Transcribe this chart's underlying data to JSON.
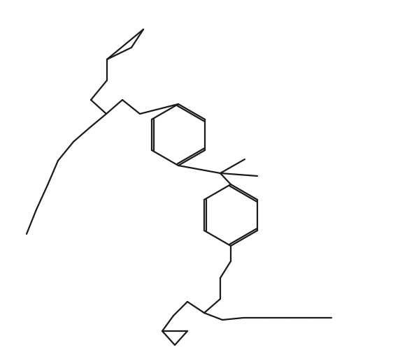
{
  "bg_color": "#ffffff",
  "line_color": "#1a1a1a",
  "line_width": 1.6,
  "figsize": [
    5.62,
    5.04
  ],
  "dpi": 100
}
